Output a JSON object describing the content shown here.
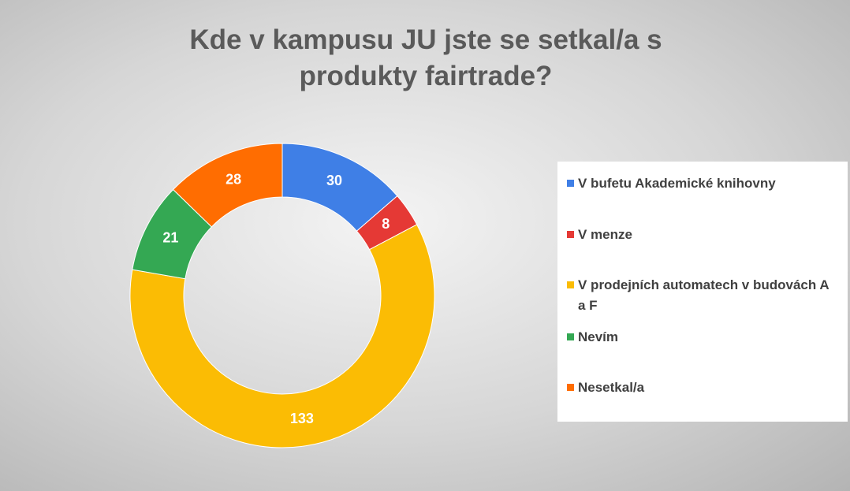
{
  "chart_data": {
    "type": "donut",
    "title": "Kde v kampusu JU jste se setkal/a s produkty fairtrade?",
    "categories": [
      "V bufetu Akademické knihovny",
      "V menze",
      "V prodejních automatech v budovách A a F",
      "Nevím",
      "Nesetkal/a"
    ],
    "values": [
      30,
      8,
      133,
      21,
      28
    ],
    "colors": [
      "#3f7fe6",
      "#e53935",
      "#fbbc04",
      "#34a853",
      "#ff6d01"
    ],
    "legend": "right"
  }
}
